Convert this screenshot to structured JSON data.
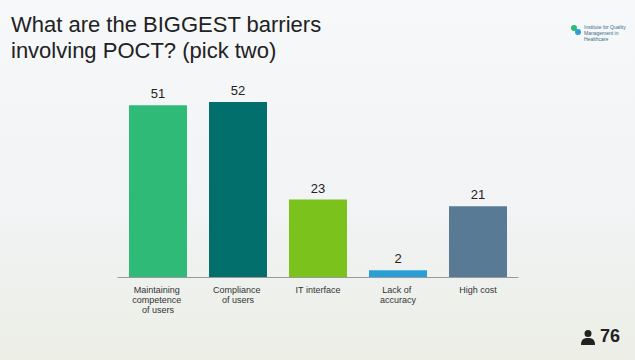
{
  "chart_data": {
    "type": "bar",
    "title": "What are the BIGGEST barriers involving POCT? (pick two)",
    "categories": [
      "Maintaining competence of users",
      "Compliance of users",
      "IT interface",
      "Lack of accuracy",
      "High cost"
    ],
    "values": [
      51,
      52,
      23,
      2,
      21
    ],
    "colors": [
      "#2fba78",
      "#036f6d",
      "#7cc21c",
      "#2a9fd6",
      "#587a95"
    ],
    "ylim": [
      0,
      52
    ],
    "grid": false,
    "data_labels": true,
    "tick_labels": "x",
    "respondents": 76,
    "logo": "Institute for Quality Management in Healthcare"
  }
}
